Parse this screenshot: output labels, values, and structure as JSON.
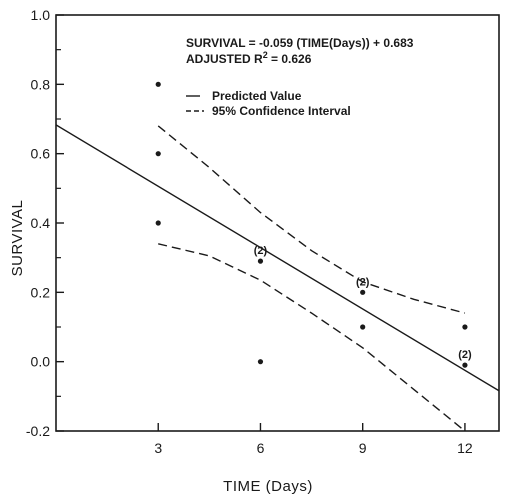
{
  "chart_data": {
    "type": "scatter",
    "xlabel": "TIME (Days)",
    "ylabel": "SURVIVAL",
    "xlim": [
      0,
      13
    ],
    "ylim": [
      -0.2,
      1.0
    ],
    "x_ticks": [
      3,
      6,
      9,
      12
    ],
    "y_ticks": [
      -0.2,
      0.0,
      0.2,
      0.4,
      0.6,
      0.8,
      1.0
    ],
    "x_tick_labels": [
      "3",
      "6",
      "9",
      "12"
    ],
    "y_tick_labels": [
      "-0.2",
      "0.0",
      "0.2",
      "0.4",
      "0.6",
      "0.8",
      "1.0"
    ],
    "grid": false,
    "points": [
      {
        "x": 3,
        "y": 0.8
      },
      {
        "x": 3,
        "y": 0.6
      },
      {
        "x": 3,
        "y": 0.4
      },
      {
        "x": 6,
        "y": 0.29,
        "label": "(2)"
      },
      {
        "x": 6,
        "y": 0.0
      },
      {
        "x": 9,
        "y": 0.2,
        "label": "(2)"
      },
      {
        "x": 9,
        "y": 0.1
      },
      {
        "x": 12,
        "y": 0.1
      },
      {
        "x": 12,
        "y": -0.01,
        "label": "(2)"
      }
    ],
    "regression": {
      "slope": -0.059,
      "intercept": 0.683,
      "x_range": [
        0,
        13
      ]
    },
    "ci_upper": [
      {
        "x": 3,
        "y": 0.68
      },
      {
        "x": 4.5,
        "y": 0.56
      },
      {
        "x": 6,
        "y": 0.43
      },
      {
        "x": 7.5,
        "y": 0.32
      },
      {
        "x": 9,
        "y": 0.23
      },
      {
        "x": 10.5,
        "y": 0.18
      },
      {
        "x": 12,
        "y": 0.14
      }
    ],
    "ci_lower": [
      {
        "x": 3,
        "y": 0.34
      },
      {
        "x": 4.5,
        "y": 0.305
      },
      {
        "x": 6,
        "y": 0.235
      },
      {
        "x": 7.5,
        "y": 0.14
      },
      {
        "x": 9,
        "y": 0.04
      },
      {
        "x": 10.5,
        "y": -0.08
      },
      {
        "x": 12,
        "y": -0.2
      }
    ],
    "annotations": {
      "equation": "SURVIVAL = -0.059 (TIME(Days)) + 0.683",
      "r2_label": "ADJUSTED R",
      "r2_exponent": "2",
      "r2_value": " = 0.626"
    },
    "legend": {
      "position": "top-right",
      "entries": [
        {
          "label": "Predicted Value",
          "style": "solid"
        },
        {
          "label": "95% Confidence Interval",
          "style": "dashed"
        }
      ]
    },
    "colors": {
      "ink": "#1a1a1a",
      "background": "#ffffff"
    }
  }
}
